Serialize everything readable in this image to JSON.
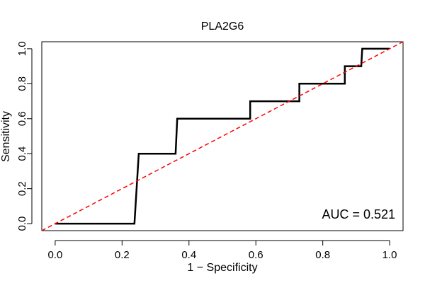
{
  "chart_data": {
    "type": "line",
    "title": "PLA2G6",
    "xlabel": "1 − Specificity",
    "ylabel": "Sensitivity",
    "xlim": [
      -0.04,
      1.04
    ],
    "ylim": [
      -0.04,
      1.04
    ],
    "x_ticks": [
      0.0,
      0.2,
      0.4,
      0.6,
      0.8,
      1.0
    ],
    "x_tick_labels": [
      "0.0",
      "0.2",
      "0.4",
      "0.6",
      "0.8",
      "1.0"
    ],
    "y_ticks": [
      0.0,
      0.2,
      0.4,
      0.6,
      0.8,
      1.0
    ],
    "y_tick_labels": [
      "0.0",
      "0.2",
      "0.4",
      "0.6",
      "0.8",
      "1.0"
    ],
    "grid": false,
    "series": [
      {
        "color": "#000000",
        "style": "solid",
        "x": [
          0.0,
          0.237,
          0.25,
          0.36,
          0.365,
          0.583,
          0.583,
          0.73,
          0.73,
          0.866,
          0.866,
          0.915,
          0.918,
          1.0
        ],
        "y": [
          0.0,
          0.0,
          0.4,
          0.4,
          0.6,
          0.6,
          0.7,
          0.7,
          0.8,
          0.8,
          0.9,
          0.9,
          1.0,
          1.0
        ]
      },
      {
        "color": "#ff0000",
        "style": "dashed",
        "x": [
          -0.04,
          1.04
        ],
        "y": [
          -0.04,
          1.04
        ]
      }
    ],
    "annotation": "AUC = 0.521"
  }
}
